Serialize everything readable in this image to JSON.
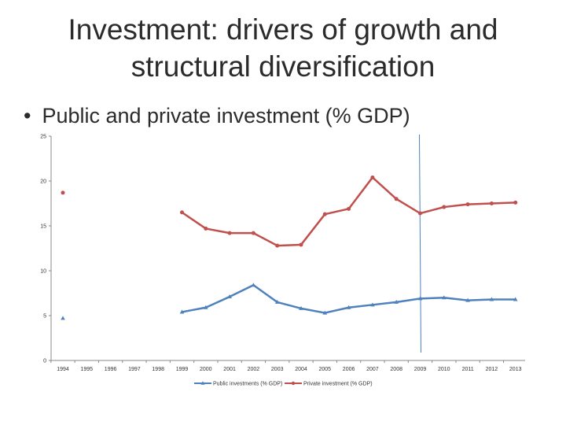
{
  "slide": {
    "title_line1": "Investment: drivers of growth and",
    "title_line2": "structural diversification",
    "bullet": "Public and private investment (% GDP)"
  },
  "chart_data": {
    "type": "line",
    "title": "Public and private investment (% GDP)",
    "xlabel": "",
    "ylabel": "",
    "ylim": [
      0,
      25
    ],
    "yticks": [
      0,
      5,
      10,
      15,
      20,
      25
    ],
    "categories": [
      "1994",
      "1995",
      "1996",
      "1997",
      "1998",
      "1999",
      "2000",
      "2001",
      "2002",
      "2003",
      "2004",
      "2005",
      "2006",
      "2007",
      "2008",
      "2009",
      "2010",
      "2011",
      "2012",
      "2013"
    ],
    "series": [
      {
        "name": "Public investments (% GDP)",
        "color": "#4f81bd",
        "marker": "triangle",
        "values": [
          4.7,
          null,
          null,
          null,
          null,
          5.4,
          5.9,
          7.1,
          8.4,
          6.5,
          5.8,
          5.3,
          5.9,
          6.2,
          6.5,
          6.9,
          7.0,
          6.7,
          6.8,
          6.8
        ]
      },
      {
        "name": "Private investment (% GDP)",
        "color": "#c0504d",
        "marker": "circle",
        "values": [
          18.7,
          null,
          null,
          null,
          null,
          16.5,
          14.7,
          14.2,
          14.2,
          12.8,
          12.9,
          16.3,
          16.9,
          20.4,
          18.0,
          16.4,
          17.1,
          17.4,
          17.5,
          17.6
        ]
      }
    ],
    "annotation": {
      "type": "vertical-line",
      "at_category": "2009",
      "color": "#4f81bd"
    },
    "legend": "bottom"
  }
}
